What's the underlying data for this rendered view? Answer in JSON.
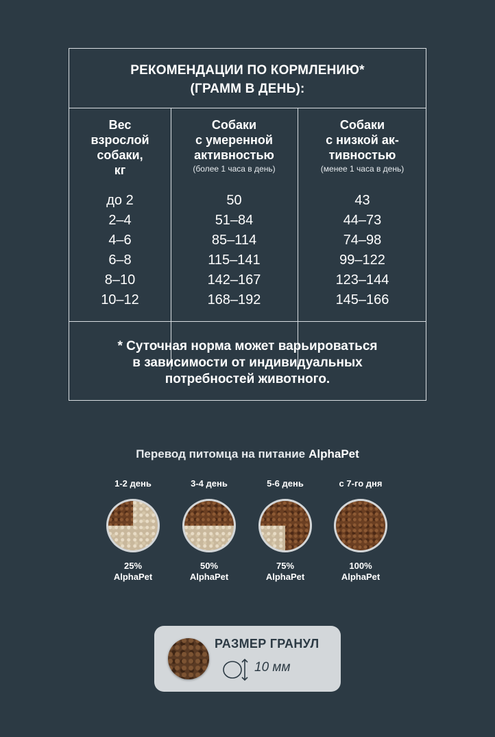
{
  "table": {
    "title": "РЕКОМЕНДАЦИИ ПО КОРМЛЕНИЮ*\n(ГРАММ В ДЕНЬ):",
    "columns": [
      {
        "header": "Вес\nвзрослой\nсобаки,\nкг",
        "sub": ""
      },
      {
        "header": "Собаки\nс умеренной\nактивностью",
        "sub": "(более 1 часа в день)"
      },
      {
        "header": "Собаки\nс низкой ак-\nтивностью",
        "sub": "(менее 1 часа в день)"
      }
    ],
    "weights": [
      "до 2",
      "2–4",
      "4–6",
      "6–8",
      "8–10",
      "10–12"
    ],
    "moderate": [
      "50",
      "51–84",
      "85–114",
      "115–141",
      "142–167",
      "168–192"
    ],
    "low": [
      "43",
      "44–73",
      "74–98",
      "99–122",
      "123–144",
      "145–166"
    ],
    "footnote": "* Суточная норма может варьироваться\nв зависимости от индивидуальных\nпотребностей животного."
  },
  "transition": {
    "title": "Перевод питомца на питание",
    "brand": "AlphaPet",
    "steps": [
      {
        "label": "1-2 день",
        "percent": "25%",
        "brand": "AlphaPet",
        "share": 0.25
      },
      {
        "label": "3-4 день",
        "percent": "50%",
        "brand": "AlphaPet",
        "share": 0.5
      },
      {
        "label": "5-6 день",
        "percent": "75%",
        "brand": "AlphaPet",
        "share": 0.75
      },
      {
        "label": "с 7-го дня",
        "percent": "100%",
        "brand": "AlphaPet",
        "share": 1.0
      }
    ]
  },
  "kibble": {
    "title": "РАЗМЕР ГРАНУЛ",
    "size": "10 мм"
  }
}
